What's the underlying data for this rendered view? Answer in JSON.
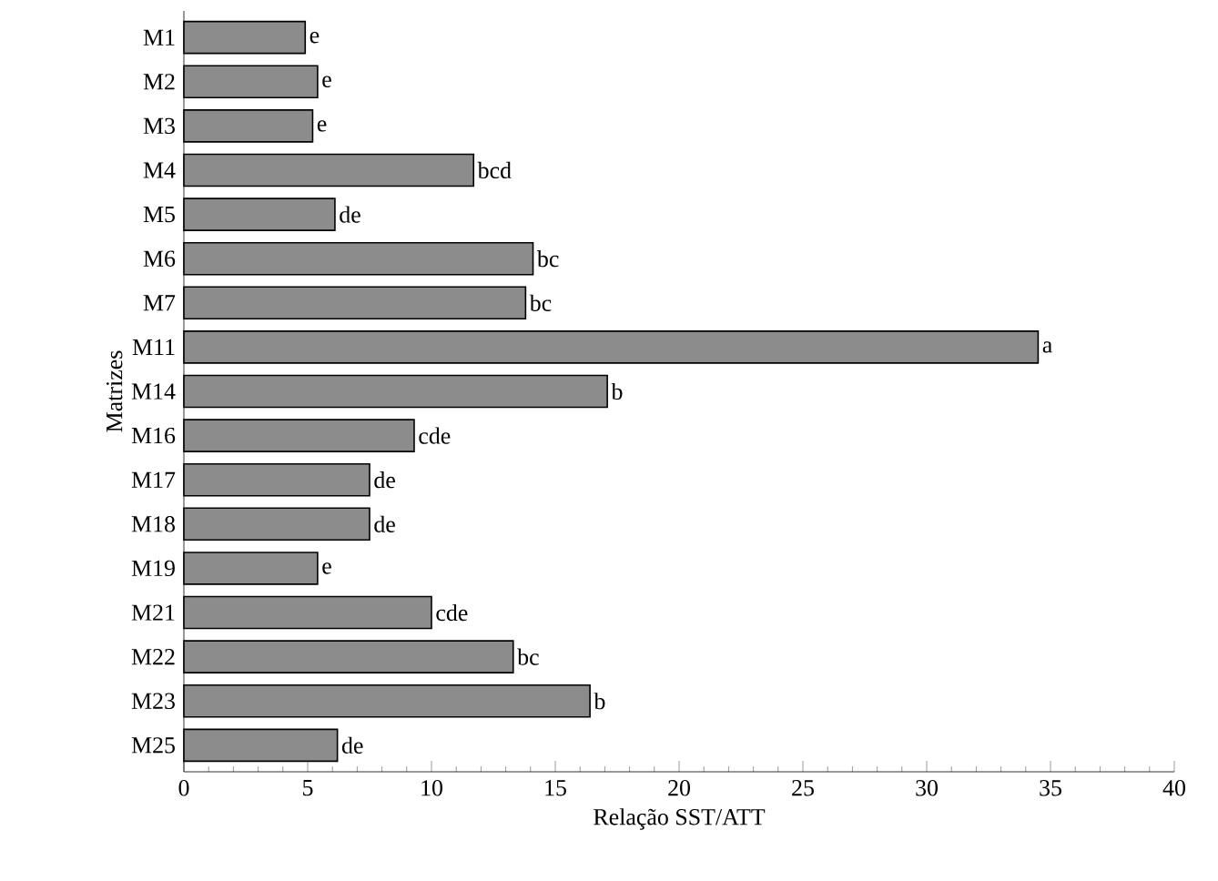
{
  "chart_data": {
    "type": "bar",
    "orientation": "horizontal",
    "xlabel": "Relação SST/ATT",
    "ylabel": "Matrizes",
    "categories": [
      "M1",
      "M2",
      "M3",
      "M4",
      "M5",
      "M6",
      "M7",
      "M11",
      "M14",
      "M16",
      "M17",
      "M18",
      "M19",
      "M21",
      "M22",
      "M23",
      "M25"
    ],
    "values": [
      4.9,
      5.4,
      5.2,
      11.7,
      6.1,
      14.1,
      13.8,
      34.5,
      17.1,
      9.3,
      7.5,
      7.5,
      5.4,
      10.0,
      13.3,
      16.4,
      6.2
    ],
    "color": "#8c8c8c",
    "xlim": [
      0,
      40
    ],
    "xticks": [
      0,
      5,
      10,
      15,
      20,
      25,
      30,
      35,
      40
    ],
    "annotations": [
      {
        "text": "e",
        "x": 4.9,
        "y": "M1"
      },
      {
        "text": "e",
        "x": 5.4,
        "y": "M2"
      },
      {
        "text": "e",
        "x": 5.2,
        "y": "M3"
      },
      {
        "text": "bcd",
        "x": 11.7,
        "y": "M4"
      },
      {
        "text": "de",
        "x": 6.1,
        "y": "M5"
      },
      {
        "text": "bc",
        "x": 14.1,
        "y": "M6"
      },
      {
        "text": "bc",
        "x": 13.8,
        "y": "M7"
      },
      {
        "text": "a",
        "x": 34.5,
        "y": "M11"
      },
      {
        "text": "b",
        "x": 17.1,
        "y": "M14"
      },
      {
        "text": "cde",
        "x": 9.3,
        "y": "M16"
      },
      {
        "text": "de",
        "x": 7.5,
        "y": "M17"
      },
      {
        "text": "de",
        "x": 7.5,
        "y": "M18"
      },
      {
        "text": "e",
        "x": 5.4,
        "y": "M19"
      },
      {
        "text": "cde",
        "x": 10.0,
        "y": "M21"
      },
      {
        "text": "bc",
        "x": 13.3,
        "y": "M22"
      },
      {
        "text": "b",
        "x": 16.4,
        "y": "M23"
      },
      {
        "text": "de",
        "x": 6.2,
        "y": "M25"
      }
    ]
  }
}
